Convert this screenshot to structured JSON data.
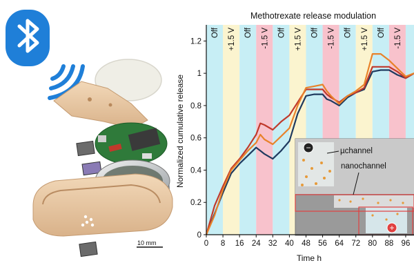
{
  "figure": {
    "scale_bar_label": "10 mm",
    "inset_labels": {
      "channel": "µchannel",
      "nano": "nanochannel",
      "minus": "−",
      "plus": "+"
    }
  },
  "chart_data": {
    "type": "line",
    "title": "Methotrexate release modulation",
    "xlabel": "Time h",
    "ylabel": "Normalized cumulative release",
    "xlim": [
      0,
      100
    ],
    "ylim": [
      0,
      1.3
    ],
    "xticks": [
      0,
      8,
      16,
      24,
      32,
      40,
      48,
      56,
      64,
      72,
      80,
      88,
      96
    ],
    "yticks": [
      0,
      0.2,
      0.4,
      0.6,
      0.8,
      1.0,
      1.2
    ],
    "ytick_labels": [
      "0",
      "0.2",
      "0.4",
      "0.6",
      "0.8",
      "1",
      "1.2"
    ],
    "grid": false,
    "phases": [
      {
        "label": "Off",
        "start": 0,
        "end": 8,
        "color": "#c7eef5"
      },
      {
        "label": "+1.5 V",
        "start": 8,
        "end": 16,
        "color": "#fbf4cf"
      },
      {
        "label": "Off",
        "start": 16,
        "end": 24,
        "color": "#c7eef5"
      },
      {
        "label": "-1.5 V",
        "start": 24,
        "end": 32,
        "color": "#f8c2cc"
      },
      {
        "label": "Off",
        "start": 32,
        "end": 40,
        "color": "#c7eef5"
      },
      {
        "label": "+1.5 V",
        "start": 40,
        "end": 48,
        "color": "#fbf4cf"
      },
      {
        "label": "Off",
        "start": 48,
        "end": 56,
        "color": "#c7eef5"
      },
      {
        "label": "-1.5 V",
        "start": 56,
        "end": 64,
        "color": "#f8c2cc"
      },
      {
        "label": "Off",
        "start": 64,
        "end": 72,
        "color": "#c7eef5"
      },
      {
        "label": "+1.5 V",
        "start": 72,
        "end": 80,
        "color": "#fbf4cf"
      },
      {
        "label": "Off",
        "start": 80,
        "end": 88,
        "color": "#c7eef5"
      },
      {
        "label": "-1.5 V",
        "start": 88,
        "end": 96,
        "color": "#f8c2cc"
      },
      {
        "label": "",
        "start": 96,
        "end": 100,
        "color": "#c7eef5"
      }
    ],
    "series": [
      {
        "color": "#1f3a5f",
        "x": [
          0,
          4,
          8,
          12,
          16,
          20,
          24,
          26,
          28,
          32,
          36,
          40,
          44,
          48,
          52,
          56,
          58,
          60,
          64,
          68,
          72,
          76,
          80,
          84,
          88,
          92,
          96,
          100
        ],
        "y": [
          0,
          0.13,
          0.26,
          0.38,
          0.44,
          0.49,
          0.54,
          0.52,
          0.5,
          0.47,
          0.52,
          0.58,
          0.75,
          0.86,
          0.87,
          0.87,
          0.84,
          0.83,
          0.8,
          0.85,
          0.88,
          0.9,
          1.01,
          1.02,
          1.02,
          0.99,
          0.97,
          1.0
        ]
      },
      {
        "color": "#c0392b",
        "x": [
          0,
          4,
          8,
          12,
          16,
          20,
          24,
          26,
          28,
          32,
          36,
          40,
          44,
          48,
          52,
          56,
          58,
          60,
          64,
          68,
          72,
          76,
          80,
          84,
          88,
          92,
          96,
          100
        ],
        "y": [
          0,
          0.18,
          0.3,
          0.41,
          0.47,
          0.54,
          0.62,
          0.69,
          0.68,
          0.65,
          0.7,
          0.74,
          0.82,
          0.9,
          0.9,
          0.9,
          0.87,
          0.85,
          0.82,
          0.86,
          0.88,
          0.91,
          1.04,
          1.04,
          1.04,
          1.01,
          0.97,
          1.0
        ]
      },
      {
        "color": "#e8822a",
        "x": [
          0,
          4,
          8,
          12,
          16,
          20,
          24,
          26,
          28,
          32,
          36,
          40,
          44,
          48,
          52,
          56,
          58,
          60,
          64,
          68,
          72,
          76,
          80,
          84,
          88,
          92,
          96,
          100
        ],
        "y": [
          0,
          0.12,
          0.28,
          0.4,
          0.46,
          0.52,
          0.57,
          0.62,
          0.59,
          0.56,
          0.61,
          0.66,
          0.8,
          0.91,
          0.92,
          0.93,
          0.89,
          0.86,
          0.81,
          0.86,
          0.89,
          0.93,
          1.12,
          1.12,
          1.08,
          1.03,
          0.98,
          1.0
        ]
      }
    ]
  }
}
